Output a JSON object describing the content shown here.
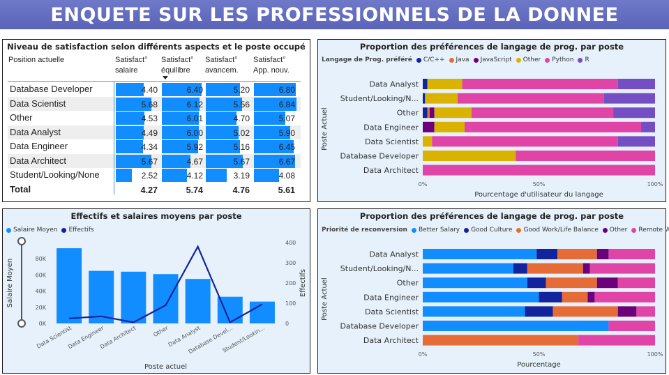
{
  "banner": {
    "title": "ENQUETE SUR LES PROFESSIONNELS DE LA DONNEE"
  },
  "colors": {
    "blue": "#118dff",
    "navy": "#12239e",
    "orange": "#e66c37",
    "purple": "#6b007b",
    "pink": "#e044a7",
    "violet": "#744ec2",
    "gold": "#d9b300",
    "darkblue": "#1a2b9a"
  },
  "table_panel": {
    "title": "Niveau de satisfaction selon différents aspects et le poste occupé",
    "columns": [
      {
        "line1": "Position actuelle",
        "line2": ""
      },
      {
        "line1": "Satisfact°",
        "line2": "salaire"
      },
      {
        "line1": "Satisfact°",
        "line2": "équilibre"
      },
      {
        "line1": "Satisfact°",
        "line2": "avancem."
      },
      {
        "line1": "Satisfact°",
        "line2": "App. nouv."
      }
    ],
    "rows": [
      {
        "position": "Database Developer",
        "values": [
          "4.40",
          "6.40",
          "5.20",
          "6.80"
        ]
      },
      {
        "position": "Data Scientist",
        "values": [
          "5.68",
          "6.12",
          "5.56",
          "6.84"
        ]
      },
      {
        "position": "Other",
        "values": [
          "4.53",
          "6.01",
          "4.70",
          "5.07"
        ]
      },
      {
        "position": "Data Analyst",
        "values": [
          "4.49",
          "6.00",
          "5.02",
          "5.90"
        ]
      },
      {
        "position": "Data Engineer",
        "values": [
          "4.34",
          "5.92",
          "5.16",
          "6.45"
        ]
      },
      {
        "position": "Data Architect",
        "values": [
          "5.67",
          "4.67",
          "5.67",
          "6.67"
        ]
      },
      {
        "position": "Student/Looking/None",
        "values": [
          "2.52",
          "4.12",
          "3.19",
          "4.08"
        ]
      }
    ],
    "total": {
      "label": "Total",
      "values": [
        "4.27",
        "5.74",
        "4.76",
        "5.61"
      ]
    }
  },
  "chart_data": [
    {
      "type": "bar",
      "orientation": "horizontal-stacked-100",
      "title": "Proportion des préférences de langage de prog. par poste",
      "legend_title": "Langage de Prog. préféré",
      "xlabel": "Pourcentage d'utilisateur du langage",
      "ylabel": "Poste Actuel",
      "xticks": [
        "0%",
        "50%",
        "100%"
      ],
      "categories": [
        "Data Analyst",
        "Student/Looking/N...",
        "Other",
        "Data Engineer",
        "Data Scientist",
        "Database Developer",
        "Data Architect"
      ],
      "series": [
        {
          "name": "C/C++",
          "color": "#12239e",
          "values": [
            2,
            1,
            2,
            0,
            0,
            0,
            0
          ]
        },
        {
          "name": "Java",
          "color": "#e66c37",
          "values": [
            0,
            0,
            1,
            0,
            0,
            0,
            0
          ]
        },
        {
          "name": "JavaScript",
          "color": "#6b007b",
          "values": [
            0,
            0,
            2,
            5,
            0,
            0,
            0
          ]
        },
        {
          "name": "Other",
          "color": "#d9b300",
          "values": [
            15,
            14,
            16,
            13,
            4,
            40,
            0
          ]
        },
        {
          "name": "Python",
          "color": "#e044a7",
          "values": [
            67,
            63,
            61,
            76,
            80,
            60,
            100
          ]
        },
        {
          "name": "R",
          "color": "#744ec2",
          "values": [
            16,
            22,
            18,
            6,
            16,
            0,
            0
          ]
        }
      ]
    },
    {
      "type": "bar",
      "subtype": "bar-and-line-combo",
      "title": "Effectifs et salaires moyens par poste",
      "xlabel": "Poste actuel",
      "ylabel": "Salaire Moyen",
      "y2label": "Effectifs",
      "categories": [
        "Data Scientist",
        "Data Engineer",
        "Data Architect",
        "Other",
        "Data Analyst",
        "Database Devel...",
        "Student/Lookin..."
      ],
      "yticks": [
        "0K",
        "20K",
        "40K",
        "60K",
        "80K"
      ],
      "y2ticks": [
        "0",
        "100",
        "200",
        "300",
        "400"
      ],
      "ylim": [
        0,
        100000
      ],
      "y2lim": [
        0,
        400
      ],
      "series": [
        {
          "name": "Salaire Moyen",
          "color": "#118dff",
          "kind": "bar",
          "values": [
            93000,
            65000,
            64000,
            61000,
            55000,
            33000,
            27000
          ]
        },
        {
          "name": "Effectifs",
          "color": "#12239e",
          "kind": "line",
          "values": [
            25,
            35,
            5,
            90,
            380,
            5,
            95
          ]
        }
      ]
    },
    {
      "type": "bar",
      "orientation": "horizontal-stacked-100",
      "title": "Proportion des préférences de langage de prog. par poste",
      "legend_title": "Priorité de reconversion",
      "xlabel": "Pourcentage",
      "ylabel": "Poste Actuel",
      "xticks": [
        "0%",
        "50%",
        "100%"
      ],
      "categories": [
        "Data Analyst",
        "Student/Looking/N...",
        "Other",
        "Data Engineer",
        "Data Scientist",
        "Database Developer",
        "Data Architect"
      ],
      "series": [
        {
          "name": "Better Salary",
          "color": "#118dff",
          "values": [
            49,
            39,
            45,
            50,
            44,
            80,
            0
          ]
        },
        {
          "name": "Good Culture",
          "color": "#12239e",
          "values": [
            9,
            6,
            8,
            10,
            12,
            0,
            0
          ]
        },
        {
          "name": "Good Work/Life Balance",
          "color": "#e66c37",
          "values": [
            17,
            24,
            22,
            11,
            28,
            0,
            67
          ]
        },
        {
          "name": "Other",
          "color": "#6b007b",
          "values": [
            5,
            3,
            9,
            3,
            8,
            0,
            0
          ]
        },
        {
          "name": "Remote Work",
          "color": "#e044a7",
          "values": [
            20,
            28,
            16,
            26,
            8,
            20,
            33
          ]
        }
      ]
    }
  ]
}
